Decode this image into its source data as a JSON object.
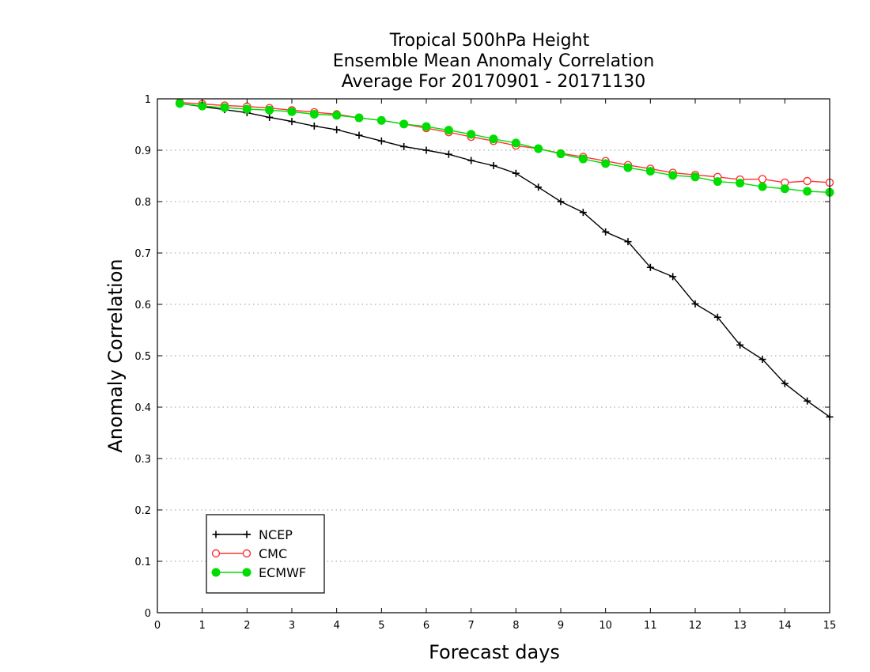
{
  "chart_data": {
    "type": "line",
    "title_lines": [
      "Tropical 500hPa Height",
      "Ensemble Mean Anomaly Correlation",
      "Average For 20170901 - 20171130"
    ],
    "xlabel": "Forecast days",
    "ylabel": "Anomaly Correlation",
    "xlim": [
      0,
      15
    ],
    "ylim": [
      0,
      1
    ],
    "x_ticks": [
      "0",
      "1",
      "2",
      "3",
      "4",
      "5",
      "6",
      "7",
      "8",
      "9",
      "10",
      "11",
      "12",
      "13",
      "14",
      "15"
    ],
    "y_ticks": [
      "0",
      "0.1",
      "0.2",
      "0.3",
      "0.4",
      "0.5",
      "0.6",
      "0.7",
      "0.8",
      "0.9",
      "1"
    ],
    "grid": "horizontal dotted",
    "legend_position": "bottom-left",
    "x": [
      0.5,
      1,
      1.5,
      2,
      2.5,
      3,
      3.5,
      4,
      4.5,
      5,
      5.5,
      6,
      6.5,
      7,
      7.5,
      8,
      8.5,
      9,
      9.5,
      10,
      10.5,
      11,
      11.5,
      12,
      12.5,
      13,
      13.5,
      14,
      14.5,
      15
    ],
    "series": [
      {
        "name": "NCEP",
        "color": "#000000",
        "marker": "plus",
        "values": [
          0.991,
          0.985,
          0.979,
          0.973,
          0.964,
          0.956,
          0.947,
          0.94,
          0.929,
          0.918,
          0.907,
          0.9,
          0.892,
          0.88,
          0.87,
          0.855,
          0.828,
          0.8,
          0.779,
          0.741,
          0.722,
          0.672,
          0.654,
          0.601,
          0.575,
          0.521,
          0.493,
          0.446,
          0.412,
          0.381
        ]
      },
      {
        "name": "CMC",
        "color": "#ff3333",
        "marker": "open-circle",
        "values": [
          0.993,
          0.99,
          0.987,
          0.985,
          0.982,
          0.978,
          0.974,
          0.97,
          0.963,
          0.958,
          0.951,
          0.943,
          0.935,
          0.926,
          0.918,
          0.909,
          0.903,
          0.894,
          0.887,
          0.879,
          0.871,
          0.864,
          0.856,
          0.852,
          0.848,
          0.843,
          0.844,
          0.837,
          0.84,
          0.837
        ]
      },
      {
        "name": "ECMWF",
        "color": "#00dd00",
        "marker": "filled-circle",
        "values": [
          0.991,
          0.986,
          0.983,
          0.98,
          0.978,
          0.975,
          0.97,
          0.968,
          0.963,
          0.958,
          0.951,
          0.946,
          0.939,
          0.931,
          0.922,
          0.914,
          0.903,
          0.893,
          0.883,
          0.874,
          0.866,
          0.859,
          0.851,
          0.848,
          0.839,
          0.836,
          0.829,
          0.825,
          0.82,
          0.818
        ]
      }
    ]
  }
}
